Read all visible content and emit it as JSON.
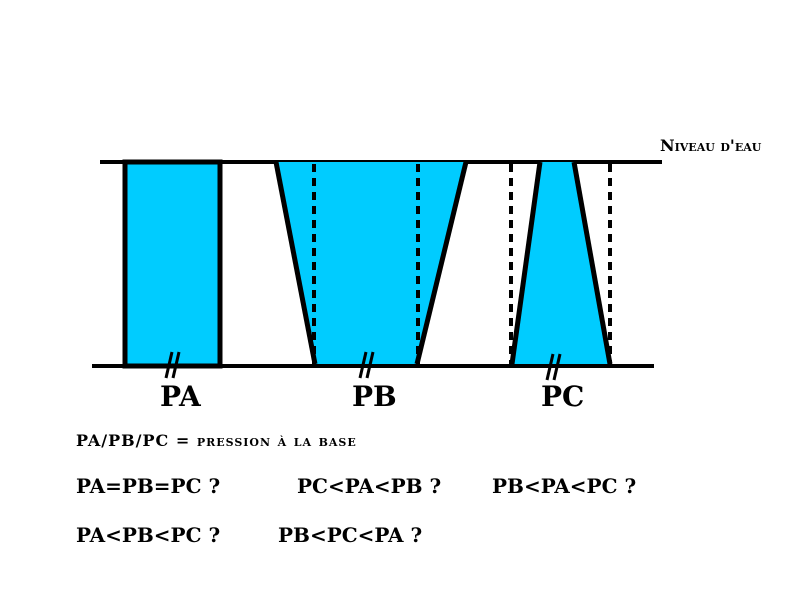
{
  "water_level_label": "Niveau d'eau",
  "vessel_labels": [
    "PA",
    "PB",
    "PC"
  ],
  "legend": "PA/PB/PC = pression à la base",
  "questions": [
    "PA=PB=PC ?",
    "PC<PA<PB ?",
    "PB<PA<PC ?",
    "PA<PB<PC ?",
    "PB<PC<PA ?"
  ],
  "colors": {
    "water": "#00ccff",
    "outline": "#000000",
    "background": "#ffffff"
  }
}
